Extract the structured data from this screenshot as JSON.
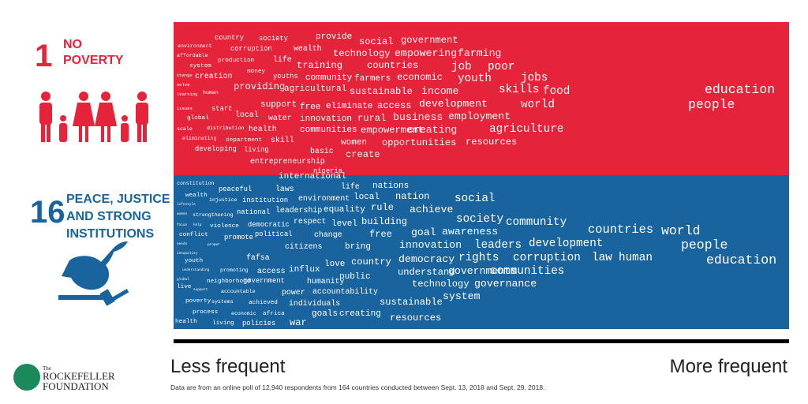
{
  "panels": [
    {
      "number": "1",
      "title": [
        "NO",
        "POVERTY"
      ],
      "words": [
        "country",
        "society",
        "provide",
        "social",
        "government",
        "environment",
        "corruption",
        "wealth",
        "technology",
        "empowering",
        "farming",
        "affordable",
        "production",
        "life",
        "training",
        "countries",
        "job",
        "poor",
        "system",
        "money",
        "youths",
        "community",
        "farmers",
        "economic",
        "youth",
        "jobs",
        "creation",
        "change",
        "solve",
        "providing",
        "agricultural",
        "sustainable",
        "income",
        "skills",
        "food",
        "human",
        "education",
        "learning",
        "people",
        "world",
        "support",
        "free",
        "eliminate",
        "access",
        "development",
        "start",
        "issues",
        "local",
        "water",
        "innovation",
        "rural",
        "business",
        "employment",
        "global",
        "scale",
        "distribution",
        "health",
        "communities",
        "empowerment",
        "creating",
        "agriculture",
        "eliminating",
        "department",
        "skill",
        "women",
        "opportunities",
        "resources",
        "developing",
        "living",
        "basic",
        "create",
        "entrepreneurship",
        "nigeria"
      ]
    },
    {
      "number": "16",
      "title": [
        "PEACE, JUSTICE",
        "AND STRONG",
        "INSTITUTIONS"
      ],
      "words": [
        "international",
        "constitution",
        "life",
        "nations",
        "peaceful",
        "laws",
        "wealth",
        "injustice",
        "institution",
        "environment",
        "local",
        "nation",
        "social",
        "lifestyle",
        "leadership",
        "equality",
        "rule",
        "achieve",
        "strengthening",
        "national",
        "women",
        "society",
        "community",
        "respect",
        "level",
        "building",
        "violence",
        "democratic",
        "focus",
        "help",
        "countries",
        "world",
        "conflict",
        "promote",
        "political",
        "change",
        "free",
        "goal",
        "awareness",
        "needs",
        "proper",
        "leaders",
        "development",
        "innovation",
        "citizens",
        "bring",
        "people",
        "inequality",
        "education",
        "fafsa",
        "democracy",
        "rights",
        "corruption",
        "law",
        "human",
        "youth",
        "love",
        "country",
        "access",
        "influx",
        "promoting",
        "understanding",
        "communities",
        "understand",
        "governments",
        "public",
        "neighborhood",
        "government",
        "humanity",
        "global",
        "technology",
        "governance",
        "live",
        "support",
        "power",
        "accountability",
        "accountable",
        "system",
        "poverty",
        "systems",
        "achieved",
        "individuals",
        "sustainable",
        "process",
        "economic",
        "africa",
        "goals",
        "creating",
        "resources",
        "health",
        "living",
        "policies",
        "war"
      ]
    }
  ],
  "scale": {
    "left": "Less frequent",
    "right": "More frequent"
  },
  "footnote": "Data are from an online poll of 12,940 respondents from 164 countries conducted between Sept. 13, 2018 and Sept. 29, 2018.",
  "logo": {
    "small": "The",
    "line1": "ROCKEFELLER",
    "line2": "FOUNDATION"
  }
}
